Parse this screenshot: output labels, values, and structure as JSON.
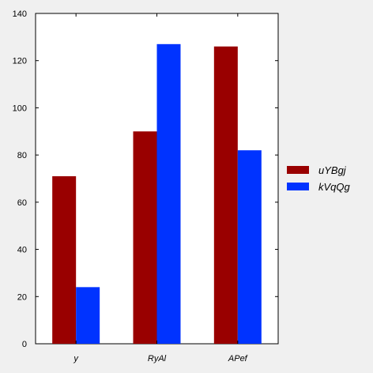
{
  "chart_data": {
    "type": "bar",
    "categories": [
      "y",
      "RyAl",
      "APef"
    ],
    "series": [
      {
        "name": "uYBgj",
        "values": [
          71,
          90,
          126
        ],
        "color": "#990000"
      },
      {
        "name": "kVqQg",
        "values": [
          24,
          127,
          82
        ],
        "color": "#0033ff"
      }
    ],
    "ylim": [
      0,
      140
    ],
    "yticks": [
      0,
      20,
      40,
      60,
      80,
      100,
      120,
      140
    ],
    "title": "",
    "xlabel": "",
    "ylabel": "",
    "grid": false,
    "legend_position": "right"
  }
}
